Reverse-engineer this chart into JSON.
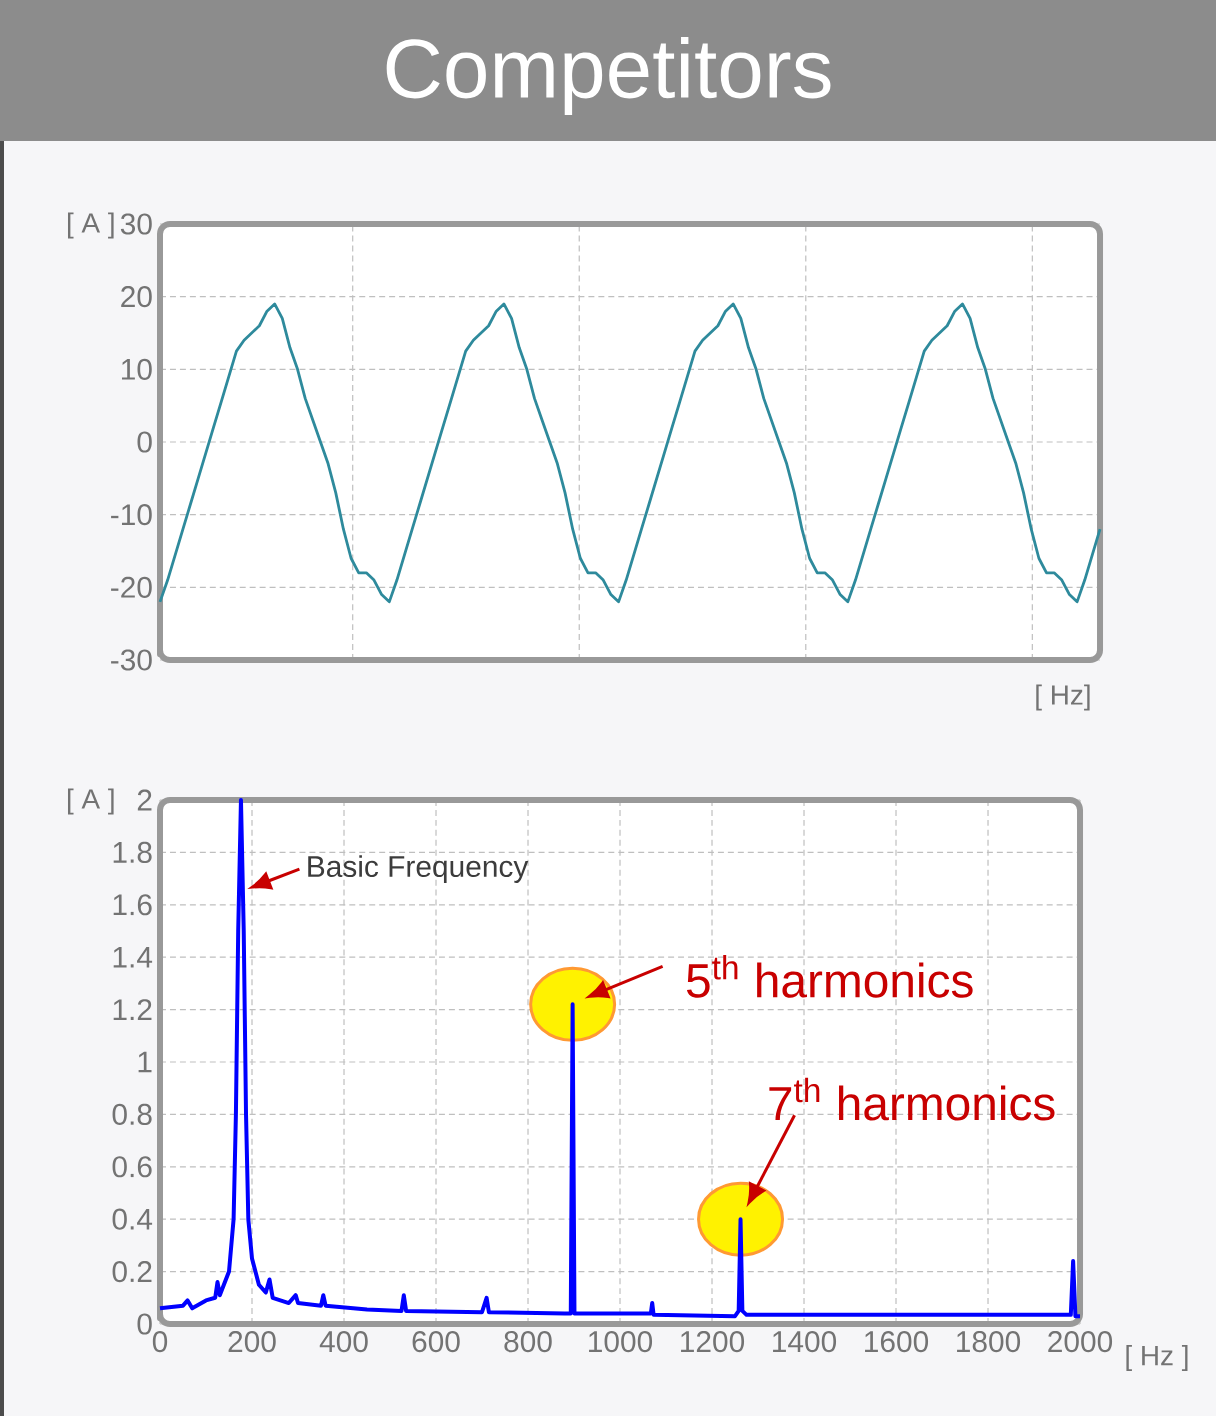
{
  "chart_data": [
    {
      "type": "line",
      "title": "Competitors",
      "ylabel": "[ A ]",
      "xlabel": "[ Hz]",
      "color": "#2e8a9c",
      "grid": true,
      "tick_labels": "y",
      "ylim": [
        -30,
        30
      ],
      "yticks": [
        -30,
        -20,
        -10,
        0,
        10,
        20,
        30
      ],
      "categories": [
        null,
        null,
        null,
        null,
        null,
        null,
        null,
        null,
        null,
        null,
        null,
        null,
        null,
        null,
        null,
        null,
        null,
        null,
        null,
        null,
        null,
        null,
        null,
        null,
        null,
        null,
        null,
        null,
        null,
        null,
        null,
        null,
        null,
        null,
        null,
        null,
        null,
        null,
        null,
        null,
        null,
        null,
        null,
        null,
        null,
        null,
        null,
        null,
        null,
        null,
        null,
        null,
        null,
        null,
        null,
        null,
        null,
        null,
        null,
        null,
        null,
        null,
        null,
        null,
        null,
        null,
        null,
        null,
        null,
        null,
        null,
        null,
        null,
        null,
        null,
        null,
        null,
        null,
        null,
        null,
        null,
        null,
        null,
        null,
        null,
        null,
        null,
        null,
        null,
        null,
        null,
        null,
        null,
        null,
        null,
        null,
        null,
        null,
        null,
        null,
        null,
        null,
        null,
        null,
        null,
        null,
        null,
        null,
        null,
        null,
        null,
        null,
        null,
        null,
        null,
        null,
        null,
        null,
        null,
        null,
        null,
        null,
        null,
        null
      ],
      "values": [
        -22,
        -19,
        -15.5,
        -12,
        -8.5,
        -5,
        -1.5,
        2,
        5.5,
        9,
        12.5,
        14,
        15,
        16,
        18,
        19,
        17,
        13,
        10,
        6,
        3,
        0,
        -3,
        -7,
        -12,
        -16,
        -18,
        -18,
        -19,
        -21,
        -22,
        -19,
        -15.5,
        -12,
        -8.5,
        -5,
        -1.5,
        2,
        5.5,
        9,
        12.5,
        14,
        15,
        16,
        18,
        19,
        17,
        13,
        10,
        6,
        3,
        0,
        -3,
        -7,
        -12,
        -16,
        -18,
        -18,
        -19,
        -21,
        -22,
        -19,
        -15.5,
        -12,
        -8.5,
        -5,
        -1.5,
        2,
        5.5,
        9,
        12.5,
        14,
        15,
        16,
        18,
        19,
        17,
        13,
        10,
        6,
        3,
        0,
        -3,
        -7,
        -12,
        -16,
        -18,
        -18,
        -19,
        -21,
        -22,
        -19,
        -15.5,
        -12,
        -8.5,
        -5,
        -1.5,
        2,
        5.5,
        9,
        12.5,
        14,
        15,
        16,
        18,
        19,
        17,
        13,
        10,
        6,
        3,
        0,
        -3,
        -7,
        -12,
        -16,
        -18,
        -18,
        -19,
        -21,
        -22,
        -19,
        -15.5,
        -12
      ]
    },
    {
      "type": "line",
      "ylabel": "[ A ]",
      "xlabel": "[ Hz ]",
      "color": "#0000ff",
      "grid": true,
      "xlim": [
        0,
        2000
      ],
      "xticks": [
        0,
        200,
        400,
        600,
        800,
        1000,
        1200,
        1400,
        1600,
        1800,
        2000
      ],
      "ylim": [
        0,
        2
      ],
      "yticks": [
        0,
        0.2,
        0.4,
        0.6,
        0.8,
        1,
        1.2,
        1.4,
        1.6,
        1.8,
        2
      ],
      "x": [
        0,
        50,
        60,
        70,
        100,
        120,
        125,
        130,
        150,
        160,
        165,
        170,
        176,
        182,
        187,
        192,
        200,
        215,
        230,
        238,
        245,
        280,
        295,
        300,
        350,
        355,
        360,
        450,
        525,
        530,
        535,
        700,
        710,
        715,
        880,
        893,
        897,
        901,
        1050,
        1067,
        1070,
        1073,
        1250,
        1258,
        1262,
        1266,
        1275,
        1600,
        1980,
        1985,
        1990,
        2000
      ],
      "values": [
        0.06,
        0.07,
        0.09,
        0.06,
        0.09,
        0.1,
        0.16,
        0.11,
        0.2,
        0.4,
        0.8,
        1.5,
        2,
        1.5,
        0.8,
        0.4,
        0.25,
        0.15,
        0.12,
        0.17,
        0.1,
        0.08,
        0.11,
        0.08,
        0.07,
        0.11,
        0.07,
        0.055,
        0.05,
        0.11,
        0.05,
        0.045,
        0.1,
        0.045,
        0.04,
        0.04,
        1.22,
        0.04,
        0.04,
        0.04,
        0.08,
        0.035,
        0.03,
        0.05,
        0.4,
        0.05,
        0.035,
        0.035,
        0.035,
        0.24,
        0.03,
        0.03
      ],
      "annotations": [
        {
          "text": "Basic Frequency",
          "x": 190,
          "y": 1.66
        },
        {
          "text": "5$^{th}$ harmonics",
          "x": 897,
          "y": 1.22
        },
        {
          "text": "7$^{th}$ harmonics",
          "x": 1262,
          "y": 0.4
        }
      ]
    }
  ]
}
